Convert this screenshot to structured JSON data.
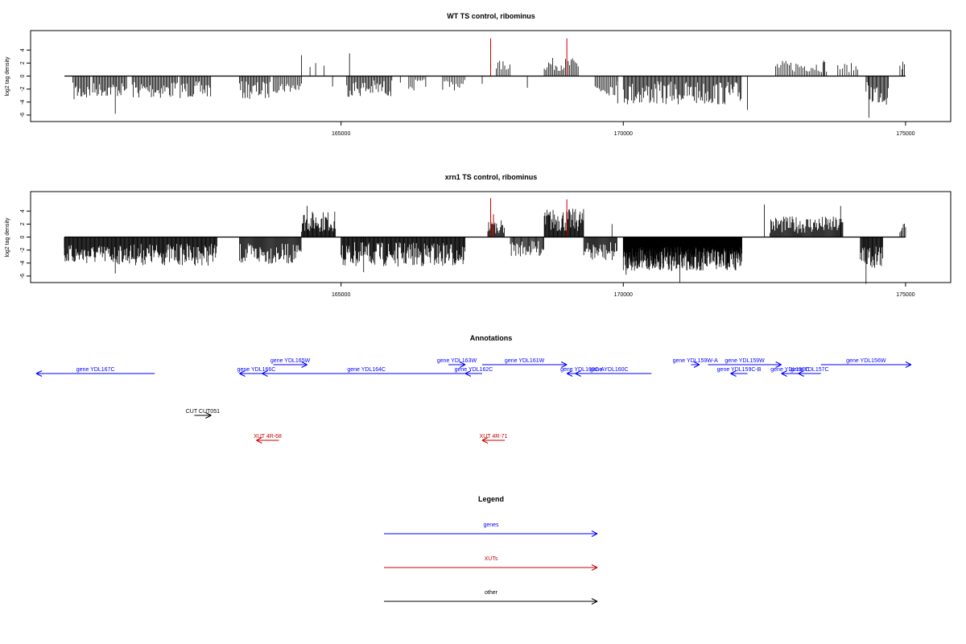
{
  "colors": {
    "background": "#ffffff",
    "axis": "#000000",
    "bars": "#000000",
    "highlight_bars": "#cc0000",
    "genes": "#0000ff",
    "xuts": "#cc0000",
    "other": "#000000"
  },
  "chart_data": [
    {
      "type": "bar",
      "title": "WT TS control, ribominus",
      "ylabel": "log2 tag density",
      "xlabel": "",
      "xlim": [
        159500,
        175800
      ],
      "ylim": [
        -7,
        7
      ],
      "x_ticks": [
        165000,
        170000,
        175000
      ],
      "x_tick_labels": [
        "165000",
        "170000",
        "175000"
      ],
      "y_ticks": [
        4,
        2,
        0,
        -2,
        -4,
        -6
      ],
      "y_tick_labels": [
        "4",
        "2",
        "0",
        "-2",
        "-4",
        "-6"
      ],
      "baseline_range": [
        160100,
        175000
      ],
      "grid": false,
      "segments": [
        {
          "start": 160250,
          "end": 160550,
          "sign": -1,
          "min": 1.0,
          "max": 3.8,
          "step": 20
        },
        {
          "start": 160600,
          "end": 161200,
          "sign": -1,
          "min": 1.0,
          "max": 3.2,
          "step": 20
        },
        {
          "start": 161300,
          "end": 162100,
          "sign": -1,
          "min": 0.8,
          "max": 3.5,
          "step": 20
        },
        {
          "start": 162150,
          "end": 162700,
          "sign": -1,
          "min": 0.8,
          "max": 3.4,
          "step": 20
        },
        {
          "start": 163200,
          "end": 163750,
          "sign": -1,
          "min": 0.8,
          "max": 3.6,
          "step": 20
        },
        {
          "start": 163800,
          "end": 164300,
          "sign": -1,
          "min": 0.8,
          "max": 2.6,
          "step": 25
        },
        {
          "start": 165100,
          "end": 165900,
          "sign": -1,
          "min": 0.6,
          "max": 3.2,
          "step": 20
        },
        {
          "start": 166200,
          "end": 166500,
          "sign": -1,
          "min": 0.5,
          "max": 2.4,
          "step": 30
        },
        {
          "start": 166800,
          "end": 167200,
          "sign": -1,
          "min": 0.5,
          "max": 2.2,
          "step": 30
        },
        {
          "start": 167750,
          "end": 168000,
          "sign": 1,
          "min": 0.8,
          "max": 2.4,
          "step": 30
        },
        {
          "start": 168600,
          "end": 169200,
          "sign": 1,
          "min": 0.8,
          "max": 2.8,
          "step": 25
        },
        {
          "start": 169500,
          "end": 169900,
          "sign": -1,
          "min": 0.6,
          "max": 3.0,
          "step": 25
        },
        {
          "start": 170000,
          "end": 172100,
          "sign": -1,
          "min": 0.8,
          "max": 4.5,
          "step": 18
        },
        {
          "start": 172700,
          "end": 173600,
          "sign": 1,
          "min": 0.6,
          "max": 2.4,
          "step": 30
        },
        {
          "start": 173800,
          "end": 174150,
          "sign": 1,
          "min": 0.6,
          "max": 2.0,
          "step": 40
        },
        {
          "start": 174300,
          "end": 174700,
          "sign": -1,
          "min": 0.8,
          "max": 4.5,
          "step": 18
        },
        {
          "start": 174900,
          "end": 175000,
          "sign": 1,
          "min": 0.6,
          "max": 2.0,
          "step": 40
        }
      ],
      "bars": [
        {
          "x": 161000,
          "y": -5.8
        },
        {
          "x": 164300,
          "y": 3.2
        },
        {
          "x": 164450,
          "y": 1.4
        },
        {
          "x": 164550,
          "y": 2.0
        },
        {
          "x": 164700,
          "y": 1.6
        },
        {
          "x": 164850,
          "y": -1.6
        },
        {
          "x": 165150,
          "y": 3.5
        },
        {
          "x": 166050,
          "y": -1.0
        },
        {
          "x": 167500,
          "y": -1.2
        },
        {
          "x": 168300,
          "y": -1.8
        },
        {
          "x": 169900,
          "y": -4.2
        },
        {
          "x": 172200,
          "y": -5.2
        },
        {
          "x": 173550,
          "y": 2.4
        },
        {
          "x": 174150,
          "y": 1.0
        },
        {
          "x": 174350,
          "y": -6.4
        },
        {
          "x": 174950,
          "y": 2.2
        }
      ],
      "highlight_bars": [
        {
          "x": 167650,
          "y": 5.8
        },
        {
          "x": 169000,
          "y": 5.8
        }
      ]
    },
    {
      "type": "bar",
      "title": "xrn1 TS control, ribominus",
      "ylabel": "log2 tag density",
      "xlabel": "",
      "xlim": [
        159500,
        175800
      ],
      "ylim": [
        -7,
        7
      ],
      "x_ticks": [
        165000,
        170000,
        175000
      ],
      "x_tick_labels": [
        "165000",
        "170000",
        "175000"
      ],
      "y_ticks": [
        4,
        2,
        0,
        -2,
        -4,
        -6
      ],
      "y_tick_labels": [
        "4",
        "2",
        "0",
        "-2",
        "-4",
        "-6"
      ],
      "baseline_range": [
        160100,
        175000
      ],
      "grid": false,
      "segments": [
        {
          "start": 160100,
          "end": 161300,
          "sign": -1,
          "min": 1.2,
          "max": 4.2,
          "step": 12
        },
        {
          "start": 161300,
          "end": 162800,
          "sign": -1,
          "min": 1.0,
          "max": 4.4,
          "step": 12
        },
        {
          "start": 163200,
          "end": 164300,
          "sign": -1,
          "min": 1.0,
          "max": 4.2,
          "step": 14
        },
        {
          "start": 164300,
          "end": 164900,
          "sign": 1,
          "min": 0.8,
          "max": 4.0,
          "step": 12
        },
        {
          "start": 165000,
          "end": 167200,
          "sign": -1,
          "min": 0.8,
          "max": 4.6,
          "step": 12
        },
        {
          "start": 167600,
          "end": 167900,
          "sign": 1,
          "min": 0.6,
          "max": 2.6,
          "step": 14
        },
        {
          "start": 168000,
          "end": 168600,
          "sign": -1,
          "min": 0.6,
          "max": 3.0,
          "step": 16
        },
        {
          "start": 168600,
          "end": 169300,
          "sign": 1,
          "min": 0.8,
          "max": 4.4,
          "step": 12
        },
        {
          "start": 169300,
          "end": 169900,
          "sign": -1,
          "min": 0.8,
          "max": 3.8,
          "step": 14
        },
        {
          "start": 170000,
          "end": 172100,
          "sign": -1,
          "min": 1.5,
          "max": 5.2,
          "step": 6
        },
        {
          "start": 172600,
          "end": 173900,
          "sign": 1,
          "min": 0.6,
          "max": 3.2,
          "step": 14
        },
        {
          "start": 174200,
          "end": 174600,
          "sign": -1,
          "min": 1.0,
          "max": 5.0,
          "step": 12
        },
        {
          "start": 174900,
          "end": 175000,
          "sign": 1,
          "min": 0.6,
          "max": 2.4,
          "step": 20
        }
      ],
      "bars": [
        {
          "x": 160100,
          "y": -2.8
        },
        {
          "x": 161000,
          "y": -5.6
        },
        {
          "x": 164400,
          "y": 4.8
        },
        {
          "x": 165400,
          "y": -5.4
        },
        {
          "x": 169800,
          "y": 2.0
        },
        {
          "x": 170050,
          "y": -5.8
        },
        {
          "x": 171000,
          "y": -7.0
        },
        {
          "x": 172500,
          "y": 5.0
        },
        {
          "x": 173850,
          "y": 4.8
        },
        {
          "x": 174300,
          "y": -7.2
        }
      ],
      "highlight_bars": [
        {
          "x": 167650,
          "y": 6.0
        },
        {
          "x": 167700,
          "y": 3.5
        },
        {
          "x": 169000,
          "y": 5.8
        }
      ]
    }
  ],
  "annotations": {
    "title": "Annotations",
    "genes": [
      {
        "label": "gene YDL167C",
        "start": 161700,
        "end": 159600,
        "row": 1
      },
      {
        "label": "gene YDL166C",
        "start": 163800,
        "end": 163200,
        "row": 1
      },
      {
        "label": "gene YDL165W",
        "start": 163800,
        "end": 164400,
        "row": 0
      },
      {
        "label": "gene YDL164C",
        "start": 167300,
        "end": 163600,
        "row": 1
      },
      {
        "label": "gene YDL163W",
        "start": 166900,
        "end": 167200,
        "row": 0
      },
      {
        "label": "gene YDL162C",
        "start": 167500,
        "end": 167200,
        "row": 1
      },
      {
        "label": "gene YDL161W",
        "start": 167500,
        "end": 169000,
        "row": 0
      },
      {
        "label": "gene YDL160C-A",
        "start": 169400,
        "end": 169150,
        "row": 1
      },
      {
        "label": "gene YDL160C",
        "start": 170500,
        "end": 169000,
        "row": 1
      },
      {
        "label": "gene YDL159W-A",
        "start": 171200,
        "end": 171350,
        "row": 0
      },
      {
        "label": "gene YDL159W",
        "start": 171500,
        "end": 172800,
        "row": 0
      },
      {
        "label": "gene YDL159C-B",
        "start": 172200,
        "end": 171900,
        "row": 1
      },
      {
        "label": "gene YDL158C",
        "start": 173100,
        "end": 172800,
        "row": 1
      },
      {
        "label": "gene YDL157C",
        "start": 173500,
        "end": 173100,
        "row": 1
      },
      {
        "label": "gene YDL156W",
        "start": 173500,
        "end": 175100,
        "row": 0
      }
    ],
    "xuts": [
      {
        "label": "XUT 4R-68",
        "start": 163900,
        "end": 163500,
        "row": 3
      },
      {
        "label": "XUT 4R-71",
        "start": 167900,
        "end": 167500,
        "row": 3
      }
    ],
    "other": [
      {
        "label": "CUT CUT051",
        "start": 162400,
        "end": 162700,
        "row": 2
      }
    ]
  },
  "legend": {
    "title": "Legend",
    "entries": [
      {
        "label": "genes",
        "kind": "genes"
      },
      {
        "label": "XUTs",
        "kind": "xuts"
      },
      {
        "label": "other",
        "kind": "other"
      }
    ]
  }
}
